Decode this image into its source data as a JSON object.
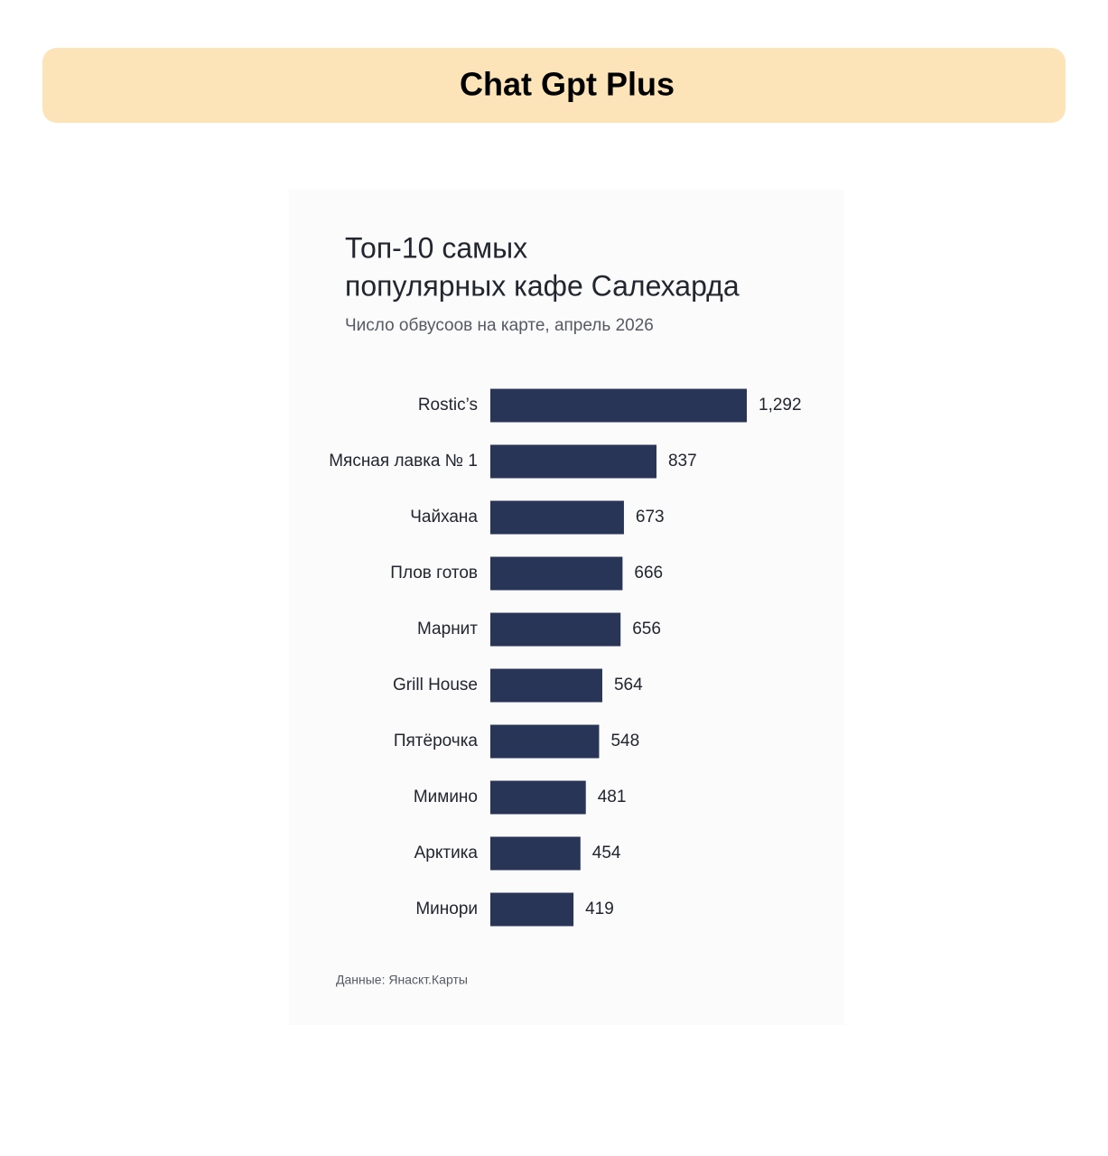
{
  "header": {
    "title": "Chat Gpt Plus"
  },
  "chart_data": {
    "type": "bar",
    "orientation": "horizontal",
    "title": [
      "Топ-10 самых",
      "популярных кафе Салехарда"
    ],
    "subtitle": "Число обвусоов на карте, апрель 2026",
    "categories": [
      "Rostic’s",
      "Мясная лавка № 1",
      "Чайхана",
      "Плов готов",
      "Марнит",
      "Grill House",
      "Пятёрочка",
      "Мимино",
      "Арктика",
      "Минори"
    ],
    "values": [
      1292,
      837,
      673,
      666,
      656,
      564,
      548,
      481,
      454,
      419
    ],
    "value_labels": [
      "1,292",
      "837",
      "673",
      "666",
      "656",
      "564",
      "548",
      "481",
      "454",
      "419"
    ],
    "color": "#283556",
    "source": "Данные: Янаскт.Карты"
  }
}
